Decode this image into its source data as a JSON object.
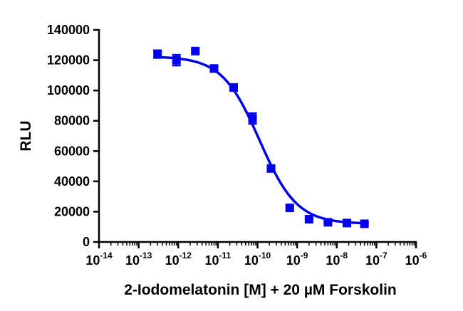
{
  "chart_data": {
    "type": "scatter",
    "title": "",
    "xlabel": "2-Iodomelatonin [M] + 20 µM Forskolin",
    "ylabel": "RLU",
    "xscale": "log",
    "xlim": [
      1e-14,
      1e-06
    ],
    "ylim": [
      0,
      140000
    ],
    "grid": false,
    "legend": "none",
    "colors": {
      "series": "#0000ee",
      "axis": "#000000"
    },
    "x_ticks": [
      {
        "value": 1e-14,
        "base": "10",
        "exp": "-14"
      },
      {
        "value": 1e-13,
        "base": "10",
        "exp": "-13"
      },
      {
        "value": 1e-12,
        "base": "10",
        "exp": "-12"
      },
      {
        "value": 1e-11,
        "base": "10",
        "exp": "-11"
      },
      {
        "value": 1e-10,
        "base": "10",
        "exp": "-10"
      },
      {
        "value": 1e-09,
        "base": "10",
        "exp": "-9"
      },
      {
        "value": 1e-08,
        "base": "10",
        "exp": "-8"
      },
      {
        "value": 1e-07,
        "base": "10",
        "exp": "-7"
      },
      {
        "value": 1e-06,
        "base": "10",
        "exp": "-6"
      }
    ],
    "y_ticks": [
      {
        "value": 0,
        "label": "0"
      },
      {
        "value": 20000,
        "label": "20000"
      },
      {
        "value": 40000,
        "label": "40000"
      },
      {
        "value": 60000,
        "label": "60000"
      },
      {
        "value": 80000,
        "label": "80000"
      },
      {
        "value": 100000,
        "label": "100000"
      },
      {
        "value": 120000,
        "label": "120000"
      },
      {
        "value": 140000,
        "label": "140000"
      }
    ],
    "series": [
      {
        "marker": "square",
        "points": [
          {
            "x": 3e-13,
            "y": 124000,
            "err": 2500
          },
          {
            "x": 9e-13,
            "y": 120000,
            "err": 3500
          },
          {
            "x": 2.7e-12,
            "y": 126000,
            "err": 1000
          },
          {
            "x": 8e-12,
            "y": 114500,
            "err": 1000
          },
          {
            "x": 2.5e-11,
            "y": 102000,
            "err": 1000
          },
          {
            "x": 7.5e-11,
            "y": 81500,
            "err": 3500
          },
          {
            "x": 2.2e-10,
            "y": 48500,
            "err": 1500
          },
          {
            "x": 6.5e-10,
            "y": 22500,
            "err": 1000
          },
          {
            "x": 2e-09,
            "y": 15000,
            "err": 800
          },
          {
            "x": 6e-09,
            "y": 13000,
            "err": 600
          },
          {
            "x": 1.8e-08,
            "y": 12500,
            "err": 500
          },
          {
            "x": 5e-08,
            "y": 12000,
            "err": 500
          }
        ]
      }
    ],
    "fit": {
      "model": "four-parameter logistic",
      "top": 122500,
      "bottom": 12000,
      "logEC50": -9.95,
      "hill_slope": -0.92,
      "x_range": [
        3e-13,
        5e-08
      ]
    }
  }
}
